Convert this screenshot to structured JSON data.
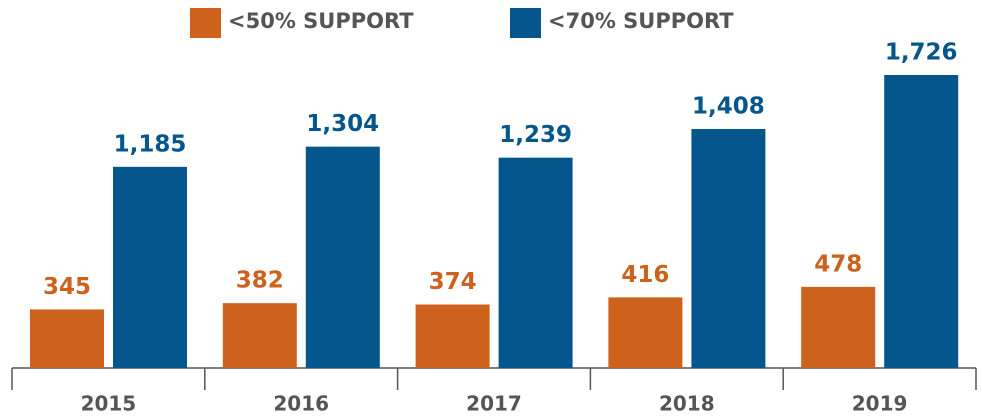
{
  "chart_data": {
    "type": "bar",
    "categories": [
      "2015",
      "2016",
      "2017",
      "2018",
      "2019"
    ],
    "series": [
      {
        "name": "<50% SUPPORT",
        "color": "#cc621c",
        "values": [
          345,
          382,
          374,
          416,
          478
        ],
        "value_labels": [
          "345",
          "382",
          "374",
          "416",
          "478"
        ]
      },
      {
        "name": "<70% SUPPORT",
        "color": "#04568c",
        "values": [
          1185,
          1304,
          1239,
          1408,
          1726
        ],
        "value_labels": [
          "1,185",
          "1,304",
          "1,239",
          "1,408",
          "1,726"
        ]
      }
    ]
  }
}
